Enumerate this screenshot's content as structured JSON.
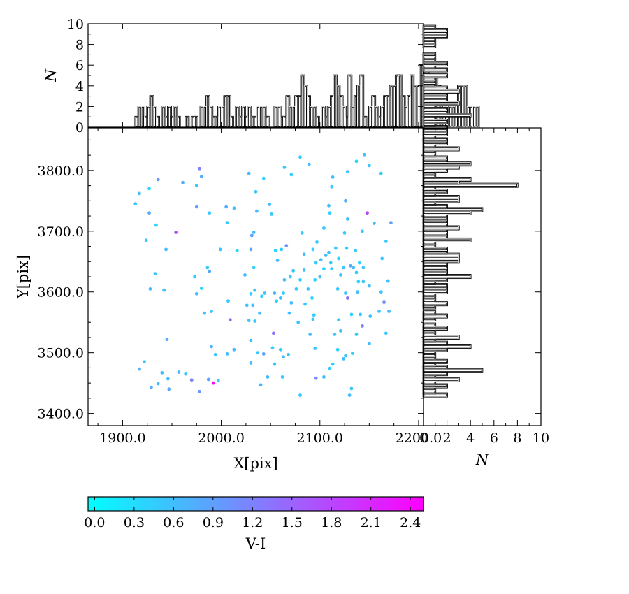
{
  "chart_data": [
    {
      "id": "scatter",
      "type": "scatter",
      "xlabel": "X[pix]",
      "ylabel": "Y[pix]",
      "xlim": [
        1865,
        2205
      ],
      "ylim": [
        3380,
        3870
      ],
      "xticks": [
        "1900.0",
        "2000.0",
        "2100.0",
        "2200.0"
      ],
      "xtick_values": [
        1900,
        2000,
        2100,
        2200
      ],
      "yticks": [
        "3400.0",
        "3500.0",
        "3600.0",
        "3700.0",
        "3800.0"
      ],
      "ytick_values": [
        3400,
        3500,
        3600,
        3700,
        3800
      ],
      "color_by": "V-I",
      "colormap": [
        "#00ffff",
        "#ff00ff"
      ],
      "points": [
        [
          1913,
          3745,
          0.5
        ],
        [
          1917,
          3762,
          0.6
        ],
        [
          1927,
          3770,
          0.3
        ],
        [
          1936,
          3785,
          1.0
        ],
        [
          1927,
          3730,
          0.8
        ],
        [
          1934,
          3710,
          0.4
        ],
        [
          1924,
          3685,
          0.5
        ],
        [
          1944,
          3670,
          0.6
        ],
        [
          1933,
          3630,
          0.5
        ],
        [
          1928,
          3605,
          0.6
        ],
        [
          1942,
          3603,
          0.6
        ],
        [
          1945,
          3522,
          0.8
        ],
        [
          1917,
          3473,
          0.7
        ],
        [
          1922,
          3485,
          0.5
        ],
        [
          1940,
          3467,
          0.6
        ],
        [
          1946,
          3457,
          0.6
        ],
        [
          1929,
          3443,
          0.8
        ],
        [
          1936,
          3449,
          0.6
        ],
        [
          1947,
          3440,
          0.8
        ],
        [
          1957,
          3468,
          0.6
        ],
        [
          1964,
          3465,
          0.5
        ],
        [
          1970,
          3455,
          1.2
        ],
        [
          1978,
          3436,
          1.0
        ],
        [
          1992,
          3450,
          2.4
        ],
        [
          1987,
          3456,
          0.9
        ],
        [
          1997,
          3454,
          0.4
        ],
        [
          1954,
          3698,
          1.7
        ],
        [
          1961,
          3780,
          0.8
        ],
        [
          1975,
          3775,
          0.5
        ],
        [
          1978,
          3803,
          1.2
        ],
        [
          1980,
          3790,
          0.8
        ],
        [
          1975,
          3740,
          0.9
        ],
        [
          1988,
          3730,
          0.5
        ],
        [
          1973,
          3625,
          0.5
        ],
        [
          1975,
          3597,
          0.6
        ],
        [
          1980,
          3606,
          0.4
        ],
        [
          1986,
          3640,
          0.5
        ],
        [
          1988,
          3634,
          0.8
        ],
        [
          1983,
          3565,
          0.6
        ],
        [
          1990,
          3568,
          0.5
        ],
        [
          1990,
          3510,
          0.7
        ],
        [
          1994,
          3497,
          0.5
        ],
        [
          2006,
          3498,
          0.6
        ],
        [
          2013,
          3505,
          0.6
        ],
        [
          1999,
          3670,
          0.5
        ],
        [
          2005,
          3740,
          0.8
        ],
        [
          2013,
          3738,
          0.6
        ],
        [
          2006,
          3714,
          0.5
        ],
        [
          2007,
          3585,
          0.5
        ],
        [
          2009,
          3554,
          1.5
        ],
        [
          2016,
          3668,
          0.4
        ],
        [
          2028,
          3795,
          0.6
        ],
        [
          2035,
          3765,
          0.5
        ],
        [
          2036,
          3733,
          0.6
        ],
        [
          2043,
          3787,
          0.4
        ],
        [
          2049,
          3744,
          0.6
        ],
        [
          2051,
          3728,
          0.5
        ],
        [
          2031,
          3693,
          0.9
        ],
        [
          2033,
          3698,
          0.6
        ],
        [
          2030,
          3670,
          0.8
        ],
        [
          2033,
          3640,
          0.4
        ],
        [
          2024,
          3628,
          0.6
        ],
        [
          2034,
          3603,
          0.5
        ],
        [
          2030,
          3597,
          0.4
        ],
        [
          2026,
          3578,
          0.5
        ],
        [
          2032,
          3578,
          0.6
        ],
        [
          2041,
          3593,
          0.4
        ],
        [
          2044,
          3598,
          0.5
        ],
        [
          2039,
          3565,
          0.6
        ],
        [
          2028,
          3553,
          0.5
        ],
        [
          2034,
          3552,
          0.5
        ],
        [
          2030,
          3520,
          0.6
        ],
        [
          2037,
          3500,
          0.5
        ],
        [
          2043,
          3498,
          0.9
        ],
        [
          2030,
          3483,
          0.6
        ],
        [
          2053,
          3532,
          1.4
        ],
        [
          2052,
          3508,
          0.4
        ],
        [
          2054,
          3481,
          0.5
        ],
        [
          2060,
          3505,
          0.4
        ],
        [
          2063,
          3493,
          0.6
        ],
        [
          2068,
          3497,
          0.6
        ],
        [
          2062,
          3460,
          0.5
        ],
        [
          2040,
          3447,
          0.7
        ],
        [
          2047,
          3460,
          0.6
        ],
        [
          2064,
          3805,
          0.5
        ],
        [
          2071,
          3793,
          0.4
        ],
        [
          2080,
          3822,
          0.5
        ],
        [
          2089,
          3810,
          0.6
        ],
        [
          2055,
          3668,
          0.4
        ],
        [
          2061,
          3670,
          0.5
        ],
        [
          2066,
          3676,
          1.0
        ],
        [
          2057,
          3652,
          0.6
        ],
        [
          2073,
          3635,
          0.5
        ],
        [
          2070,
          3625,
          0.5
        ],
        [
          2064,
          3620,
          0.6
        ],
        [
          2063,
          3598,
          0.5
        ],
        [
          2060,
          3590,
          0.6
        ],
        [
          2054,
          3598,
          0.7
        ],
        [
          2056,
          3585,
          0.4
        ],
        [
          2071,
          3582,
          0.6
        ],
        [
          2076,
          3605,
          0.5
        ],
        [
          2080,
          3620,
          0.4
        ],
        [
          2084,
          3636,
          0.6
        ],
        [
          2088,
          3605,
          0.6
        ],
        [
          2085,
          3580,
          0.5
        ],
        [
          2092,
          3590,
          0.4
        ],
        [
          2094,
          3562,
          0.5
        ],
        [
          2093,
          3555,
          0.5
        ],
        [
          2090,
          3530,
          0.6
        ],
        [
          2078,
          3550,
          0.5
        ],
        [
          2069,
          3565,
          0.6
        ],
        [
          2095,
          3620,
          0.4
        ],
        [
          2100,
          3625,
          0.6
        ],
        [
          2096,
          3648,
          0.5
        ],
        [
          2104,
          3638,
          0.4
        ],
        [
          2112,
          3638,
          0.5
        ],
        [
          2082,
          3697,
          0.5
        ],
        [
          2084,
          3662,
          0.6
        ],
        [
          2093,
          3670,
          0.4
        ],
        [
          2097,
          3682,
          0.5
        ],
        [
          2106,
          3660,
          0.6
        ],
        [
          2101,
          3653,
          0.6
        ],
        [
          2104,
          3705,
          0.5
        ],
        [
          2109,
          3742,
          0.6
        ],
        [
          2110,
          3730,
          0.4
        ],
        [
          2112,
          3773,
          0.5
        ],
        [
          2113,
          3789,
          0.6
        ],
        [
          2126,
          3750,
          0.8
        ],
        [
          2128,
          3798,
          0.5
        ],
        [
          2137,
          3815,
          0.4
        ],
        [
          2145,
          3826,
          0.6
        ],
        [
          2150,
          3808,
          0.5
        ],
        [
          2162,
          3795,
          0.5
        ],
        [
          2148,
          3730,
          1.8
        ],
        [
          2155,
          3713,
          0.6
        ],
        [
          2172,
          3714,
          0.9
        ],
        [
          2143,
          3700,
          0.5
        ],
        [
          2128,
          3720,
          0.6
        ],
        [
          2125,
          3697,
          0.5
        ],
        [
          2127,
          3672,
          0.5
        ],
        [
          2116,
          3672,
          0.5
        ],
        [
          2109,
          3665,
          0.6
        ],
        [
          2111,
          3648,
          0.5
        ],
        [
          2119,
          3655,
          0.4
        ],
        [
          2124,
          3640,
          0.5
        ],
        [
          2131,
          3643,
          0.8
        ],
        [
          2136,
          3668,
          0.5
        ],
        [
          2140,
          3648,
          0.4
        ],
        [
          2144,
          3640,
          0.5
        ],
        [
          2134,
          3640,
          0.6
        ],
        [
          2137,
          3632,
          0.5
        ],
        [
          2121,
          3628,
          0.5
        ],
        [
          2118,
          3605,
          0.5
        ],
        [
          2126,
          3598,
          0.5
        ],
        [
          2128,
          3590,
          1.4
        ],
        [
          2139,
          3617,
          0.4
        ],
        [
          2138,
          3600,
          0.6
        ],
        [
          2144,
          3617,
          0.5
        ],
        [
          2150,
          3610,
          0.6
        ],
        [
          2163,
          3655,
          0.5
        ],
        [
          2167,
          3683,
          0.5
        ],
        [
          2169,
          3618,
          0.6
        ],
        [
          2162,
          3600,
          0.5
        ],
        [
          2165,
          3583,
          1.1
        ],
        [
          2170,
          3568,
          0.6
        ],
        [
          2160,
          3568,
          0.5
        ],
        [
          2132,
          3563,
          0.4
        ],
        [
          2141,
          3563,
          0.5
        ],
        [
          2151,
          3560,
          0.6
        ],
        [
          2143,
          3544,
          1.2
        ],
        [
          2137,
          3530,
          0.5
        ],
        [
          2119,
          3554,
          0.5
        ],
        [
          2121,
          3536,
          0.6
        ],
        [
          2115,
          3530,
          0.5
        ],
        [
          2118,
          3505,
          0.4
        ],
        [
          2124,
          3490,
          0.6
        ],
        [
          2126,
          3495,
          0.5
        ],
        [
          2133,
          3499,
          0.5
        ],
        [
          2113,
          3481,
          0.4
        ],
        [
          2110,
          3474,
          0.5
        ],
        [
          2104,
          3460,
          0.6
        ],
        [
          2096,
          3458,
          1.1
        ],
        [
          2132,
          3441,
          0.5
        ],
        [
          2130,
          3430,
          0.6
        ],
        [
          2080,
          3430,
          0.5
        ],
        [
          2150,
          3515,
          0.6
        ],
        [
          2167,
          3532,
          0.5
        ],
        [
          2095,
          3507,
          0.5
        ]
      ]
    },
    {
      "id": "top-histogram",
      "type": "bar",
      "orientation": "vertical",
      "ylabel": "N",
      "ylim": [
        0,
        10
      ],
      "yticks": [
        "0",
        "2",
        "4",
        "6",
        "8",
        "10"
      ],
      "ytick_values": [
        0,
        2,
        4,
        6,
        8,
        10
      ],
      "bin_start": 1913,
      "bin_width": 3,
      "counts": [
        1,
        2,
        2,
        1,
        2,
        3,
        2,
        1,
        0,
        2,
        1,
        2,
        1,
        2,
        1,
        0,
        0,
        1,
        0,
        1,
        1,
        0,
        2,
        2,
        3,
        2,
        1,
        1,
        2,
        2,
        3,
        3,
        1,
        0,
        2,
        1,
        2,
        1,
        2,
        1,
        1,
        2,
        2,
        2,
        1,
        0,
        0,
        2,
        2,
        1,
        1,
        3,
        2,
        2,
        3,
        3,
        5,
        4,
        3,
        2,
        2,
        1,
        0,
        2,
        1,
        2,
        3,
        5,
        4,
        3,
        2,
        1,
        5,
        2,
        3,
        4,
        5,
        1,
        0,
        2,
        3,
        2,
        1,
        2,
        3,
        3,
        4,
        4,
        5,
        5,
        3,
        2,
        3,
        5,
        4,
        4,
        6,
        4,
        7,
        3,
        3,
        5,
        4,
        3,
        2,
        1,
        2,
        2,
        1,
        4,
        4,
        4,
        2,
        2,
        2,
        2,
        0,
        0,
        0,
        0
      ]
    },
    {
      "id": "right-histogram",
      "type": "bar",
      "orientation": "horizontal",
      "xlabel": "N",
      "xlim": [
        0,
        10
      ],
      "xticks": [
        "0",
        "2",
        "4",
        "6",
        "8",
        "10"
      ],
      "xtick_values": [
        0,
        2,
        4,
        6,
        8,
        10
      ],
      "bin_start": 3428,
      "bin_width": 5,
      "counts": [
        2,
        1,
        1,
        2,
        1,
        3,
        1,
        2,
        5,
        2,
        1,
        2,
        1,
        1,
        1,
        2,
        4,
        2,
        1,
        3,
        1,
        1,
        2,
        1,
        0,
        1,
        2,
        1,
        0,
        1,
        2,
        1,
        1,
        1,
        2,
        2,
        2,
        1,
        2,
        4,
        2,
        2,
        2,
        2,
        3,
        3,
        3,
        2,
        2,
        1,
        1,
        4,
        2,
        2,
        2,
        3,
        2,
        2,
        2,
        2,
        4,
        5,
        2,
        1,
        3,
        3,
        1,
        2,
        1,
        8,
        3,
        4,
        1,
        1,
        2,
        3,
        4,
        2,
        2,
        1,
        1,
        3,
        1,
        2,
        2,
        1,
        2,
        2,
        2,
        1,
        2,
        1,
        4,
        2,
        2,
        1,
        3,
        2,
        2,
        2,
        3,
        2,
        1,
        1,
        1,
        2,
        0,
        2,
        1,
        2,
        1,
        1,
        1,
        0,
        0,
        1,
        1,
        1,
        2,
        2,
        2,
        1
      ]
    },
    {
      "id": "colorbar",
      "type": "heatmap",
      "label": "V-I",
      "range": [
        -0.05,
        2.5
      ],
      "ticks": [
        "0.0",
        "0.3",
        "0.6",
        "0.9",
        "1.2",
        "1.5",
        "1.8",
        "2.1",
        "2.4"
      ],
      "tick_values": [
        0.0,
        0.3,
        0.6,
        0.9,
        1.2,
        1.5,
        1.8,
        2.1,
        2.4
      ],
      "colors": [
        "#00ffff",
        "#ff00ff"
      ]
    }
  ]
}
